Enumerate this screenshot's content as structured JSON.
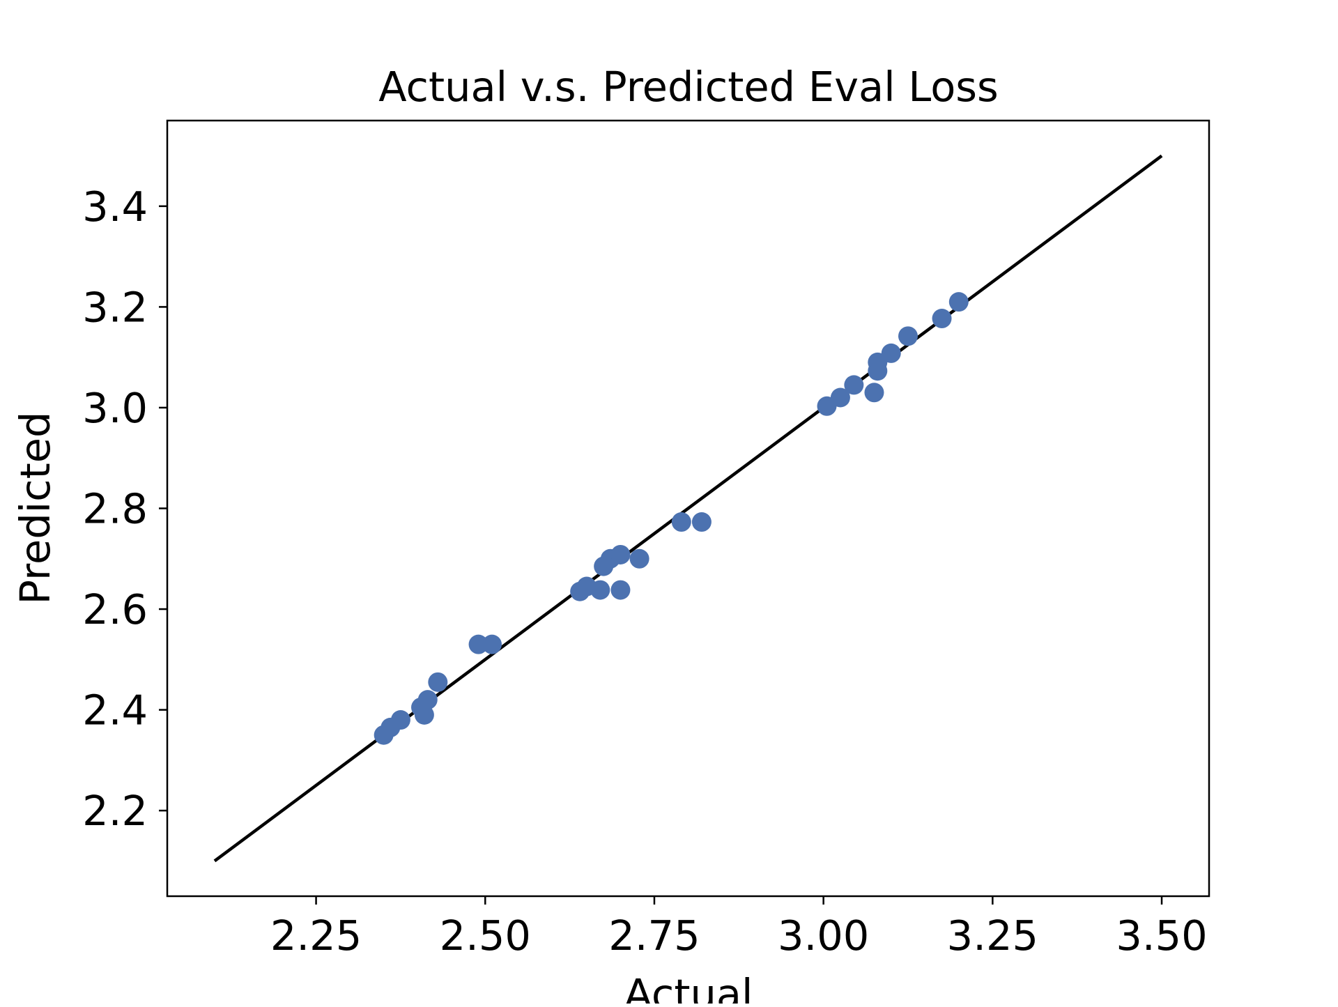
{
  "chart_data": {
    "type": "scatter",
    "title": "Actual v.s. Predicted Eval Loss",
    "xlabel": "Actual",
    "ylabel": "Predicted",
    "xlim": [
      2.03,
      3.57
    ],
    "ylim": [
      2.03,
      3.57
    ],
    "x_ticks": [
      2.25,
      2.5,
      2.75,
      3.0,
      3.25,
      3.5
    ],
    "x_tick_labels": [
      "2.25",
      "2.50",
      "2.75",
      "3.00",
      "3.25",
      "3.50"
    ],
    "y_ticks": [
      2.2,
      2.4,
      2.6,
      2.8,
      3.0,
      3.2,
      3.4
    ],
    "y_tick_labels": [
      "2.2",
      "2.4",
      "2.6",
      "2.8",
      "3.0",
      "3.2",
      "3.4"
    ],
    "grid": false,
    "point_color": "#4C72B0",
    "line_color": "#000000",
    "reference_line": {
      "x": [
        2.1,
        3.5
      ],
      "y": [
        2.1,
        3.5
      ]
    },
    "points": [
      {
        "x": 2.35,
        "y": 2.35
      },
      {
        "x": 2.36,
        "y": 2.365
      },
      {
        "x": 2.375,
        "y": 2.38
      },
      {
        "x": 2.405,
        "y": 2.405
      },
      {
        "x": 2.41,
        "y": 2.39
      },
      {
        "x": 2.415,
        "y": 2.42
      },
      {
        "x": 2.43,
        "y": 2.455
      },
      {
        "x": 2.49,
        "y": 2.53
      },
      {
        "x": 2.51,
        "y": 2.53
      },
      {
        "x": 2.64,
        "y": 2.635
      },
      {
        "x": 2.65,
        "y": 2.645
      },
      {
        "x": 2.67,
        "y": 2.638
      },
      {
        "x": 2.675,
        "y": 2.685
      },
      {
        "x": 2.685,
        "y": 2.7
      },
      {
        "x": 2.7,
        "y": 2.708
      },
      {
        "x": 2.7,
        "y": 2.638
      },
      {
        "x": 2.728,
        "y": 2.7
      },
      {
        "x": 2.79,
        "y": 2.773
      },
      {
        "x": 2.82,
        "y": 2.773
      },
      {
        "x": 3.005,
        "y": 3.003
      },
      {
        "x": 3.025,
        "y": 3.02
      },
      {
        "x": 3.045,
        "y": 3.045
      },
      {
        "x": 3.075,
        "y": 3.03
      },
      {
        "x": 3.08,
        "y": 3.073
      },
      {
        "x": 3.08,
        "y": 3.09
      },
      {
        "x": 3.1,
        "y": 3.108
      },
      {
        "x": 3.125,
        "y": 3.142
      },
      {
        "x": 3.175,
        "y": 3.177
      },
      {
        "x": 3.2,
        "y": 3.21
      }
    ]
  }
}
